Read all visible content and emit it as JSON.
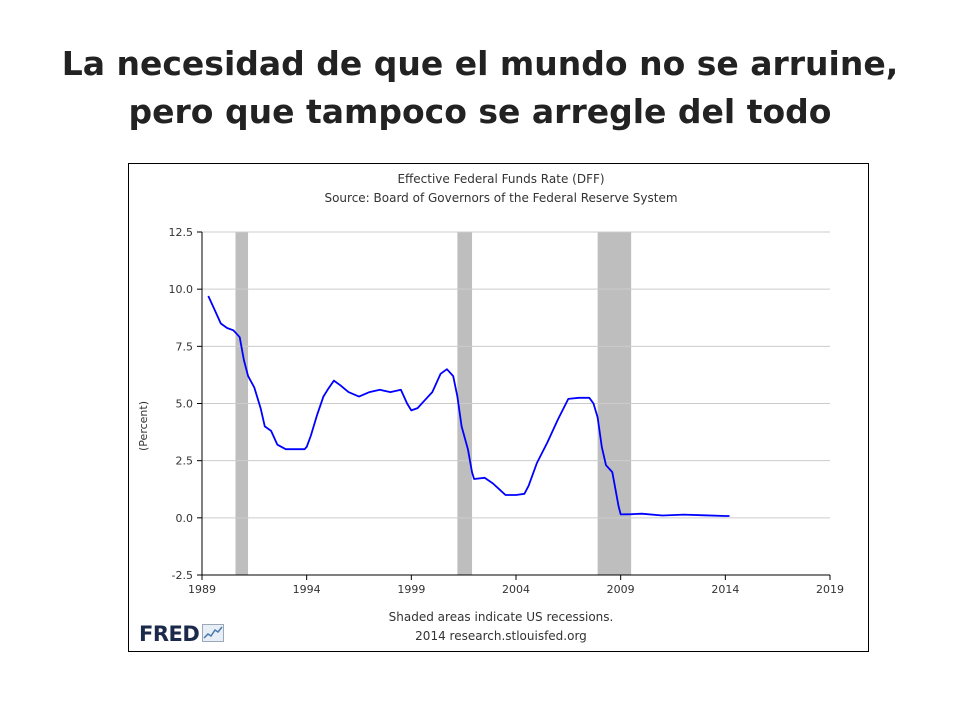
{
  "slide": {
    "title_line1": "La necesidad de que el mundo no se arruine,",
    "title_line2": "pero que tampoco se arregle del todo"
  },
  "chart_data": {
    "type": "line",
    "title": "Effective Federal Funds Rate (DFF)",
    "subtitle": "Source: Board of Governors of the Federal Reserve System",
    "xlabel": "",
    "ylabel": "(Percent)",
    "xlim": [
      1989,
      2019
    ],
    "ylim": [
      -2.5,
      12.5
    ],
    "x_ticks": [
      "1989",
      "1994",
      "1999",
      "2004",
      "2009",
      "2014",
      "2019"
    ],
    "y_ticks": [
      "12.5",
      "10.0",
      "7.5",
      "5.0",
      "2.5",
      "0.0",
      "-2.5"
    ],
    "grid": true,
    "recessions": [
      [
        1990.6,
        1991.2
      ],
      [
        2001.2,
        2001.9
      ],
      [
        2007.9,
        2009.5
      ]
    ],
    "series": [
      {
        "name": "",
        "color": "#0000ff",
        "x": [
          1989.3,
          1989.6,
          1989.9,
          1990.2,
          1990.5,
          1990.8,
          1991.0,
          1991.2,
          1991.5,
          1991.8,
          1992.0,
          1992.3,
          1992.6,
          1993.0,
          1993.5,
          1993.9,
          1994.0,
          1994.2,
          1994.5,
          1994.8,
          1995.0,
          1995.3,
          1995.6,
          1996.0,
          1996.5,
          1997.0,
          1997.5,
          1998.0,
          1998.5,
          1998.8,
          1999.0,
          1999.3,
          1999.6,
          2000.0,
          2000.4,
          2000.7,
          2001.0,
          2001.2,
          2001.4,
          2001.7,
          2001.9,
          2002.0,
          2002.5,
          2002.9,
          2003.2,
          2003.5,
          2004.0,
          2004.4,
          2004.6,
          2005.0,
          2005.5,
          2006.0,
          2006.5,
          2007.0,
          2007.5,
          2007.7,
          2007.9,
          2008.1,
          2008.3,
          2008.6,
          2008.9,
          2009.0,
          2009.5,
          2010.0,
          2011.0,
          2012.0,
          2013.0,
          2014.0,
          2014.2
        ],
        "values": [
          9.7,
          9.1,
          8.5,
          8.3,
          8.2,
          7.9,
          6.9,
          6.2,
          5.7,
          4.8,
          4.0,
          3.8,
          3.2,
          3.0,
          3.0,
          3.0,
          3.1,
          3.6,
          4.5,
          5.3,
          5.6,
          6.0,
          5.8,
          5.5,
          5.3,
          5.5,
          5.6,
          5.5,
          5.6,
          5.0,
          4.7,
          4.8,
          5.1,
          5.5,
          6.3,
          6.5,
          6.2,
          5.3,
          4.0,
          3.0,
          2.0,
          1.7,
          1.75,
          1.5,
          1.25,
          1.0,
          1.0,
          1.05,
          1.4,
          2.4,
          3.3,
          4.3,
          5.2,
          5.25,
          5.25,
          5.0,
          4.4,
          3.1,
          2.3,
          2.0,
          0.5,
          0.15,
          0.16,
          0.18,
          0.1,
          0.14,
          0.11,
          0.08,
          0.08
        ]
      }
    ],
    "footer_note_line1": "Shaded areas indicate US recessions.",
    "footer_note_line2": "2014 research.stlouisfed.org",
    "logo_text": "FRED",
    "colors": {
      "recession": "#bebebe",
      "grid": "#cccccc",
      "axis": "#000000",
      "text": "#333333",
      "line": "#0000ff"
    }
  }
}
